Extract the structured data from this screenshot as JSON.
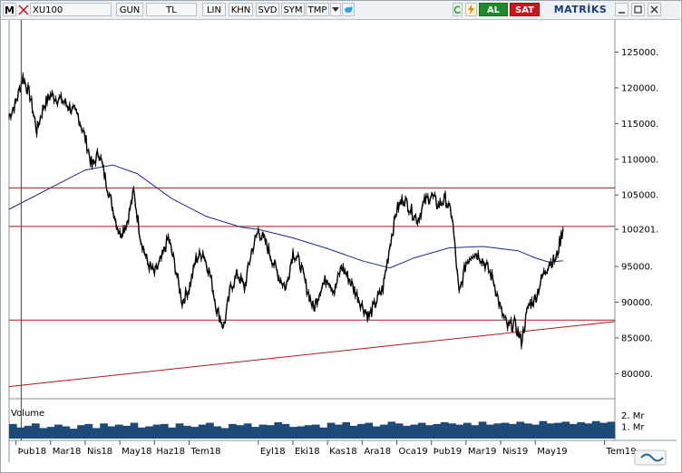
{
  "toolbar": {
    "logo": "M",
    "symbol": "XU100",
    "buttons": [
      "GUN",
      "TL",
      "LIN",
      "KHN",
      "SVD",
      "SYM",
      "TMP"
    ],
    "al": "AL",
    "sat": "SAT",
    "brand": "MATRİKS",
    "colors": {
      "al": "#1f8a2a",
      "sat": "#c8181e",
      "brand": "#1a3a78"
    }
  },
  "chart_data": {
    "type": "line",
    "style": "bar-ohlc",
    "y_ticks": [
      "125000.",
      "120000.",
      "115000.",
      "110000.",
      "105000.",
      "100201.",
      "95000.",
      "90000.",
      "85000.",
      "80000."
    ],
    "ylim": [
      76500,
      129500
    ],
    "x_ticks": [
      "Þub18",
      "Mar18",
      "Nis18",
      "May18",
      "Haz18",
      "Tem18",
      "Eyl18",
      "Eki18",
      "Kas18",
      "Ara18",
      "Oca19",
      "Þub19",
      "Mar19",
      "Nis19",
      "May19",
      "Tem19"
    ],
    "x_tick_month_index": [
      0,
      1,
      2,
      3,
      4,
      5,
      7,
      8,
      9,
      10,
      11,
      12,
      13,
      14,
      15,
      17
    ],
    "x_range_months": [
      -0.2,
      17.3
    ],
    "price_series": {
      "color": "#000000",
      "points": [
        [
          -0.2,
          116000
        ],
        [
          0.0,
          118000
        ],
        [
          0.2,
          121500
        ],
        [
          0.4,
          119000
        ],
        [
          0.6,
          114000
        ],
        [
          0.8,
          117500
        ],
        [
          1.0,
          119000
        ],
        [
          1.2,
          118500
        ],
        [
          1.4,
          118000
        ],
        [
          1.6,
          117000
        ],
        [
          1.8,
          116000
        ],
        [
          2.0,
          113000
        ],
        [
          2.2,
          109000
        ],
        [
          2.4,
          111000
        ],
        [
          2.6,
          107000
        ],
        [
          2.8,
          103000
        ],
        [
          3.0,
          99500
        ],
        [
          3.2,
          101000
        ],
        [
          3.4,
          105500
        ],
        [
          3.6,
          99000
        ],
        [
          3.8,
          95500
        ],
        [
          4.0,
          94000
        ],
        [
          4.2,
          96000
        ],
        [
          4.4,
          99000
        ],
        [
          4.6,
          95000
        ],
        [
          4.8,
          90000
        ],
        [
          5.0,
          92000
        ],
        [
          5.2,
          96000
        ],
        [
          5.4,
          97000
        ],
        [
          5.6,
          94000
        ],
        [
          5.8,
          89000
        ],
        [
          6.0,
          86500
        ],
        [
          6.2,
          92000
        ],
        [
          6.4,
          94000
        ],
        [
          6.6,
          92000
        ],
        [
          6.8,
          97000
        ],
        [
          7.0,
          100000
        ],
        [
          7.2,
          98500
        ],
        [
          7.4,
          96000
        ],
        [
          7.6,
          93500
        ],
        [
          7.8,
          92000
        ],
        [
          8.0,
          97000
        ],
        [
          8.2,
          95500
        ],
        [
          8.4,
          92000
        ],
        [
          8.6,
          89000
        ],
        [
          8.8,
          92000
        ],
        [
          9.0,
          93500
        ],
        [
          9.2,
          91500
        ],
        [
          9.4,
          95000
        ],
        [
          9.6,
          93500
        ],
        [
          9.8,
          91500
        ],
        [
          10.0,
          89500
        ],
        [
          10.2,
          88000
        ],
        [
          10.4,
          90000
        ],
        [
          10.6,
          92000
        ],
        [
          10.8,
          98000
        ],
        [
          11.0,
          103000
        ],
        [
          11.2,
          104500
        ],
        [
          11.4,
          103000
        ],
        [
          11.6,
          101500
        ],
        [
          11.8,
          104000
        ],
        [
          12.0,
          105000
        ],
        [
          12.2,
          103500
        ],
        [
          12.4,
          104500
        ],
        [
          12.6,
          102000
        ],
        [
          12.8,
          91000
        ],
        [
          13.0,
          95500
        ],
        [
          13.2,
          97000
        ],
        [
          13.4,
          96500
        ],
        [
          13.6,
          95000
        ],
        [
          13.8,
          93000
        ],
        [
          14.0,
          89000
        ],
        [
          14.2,
          86500
        ],
        [
          14.4,
          87000
        ],
        [
          14.6,
          84500
        ],
        [
          14.8,
          89500
        ],
        [
          15.0,
          90500
        ],
        [
          15.2,
          93500
        ],
        [
          15.4,
          95500
        ],
        [
          15.6,
          96000
        ],
        [
          15.8,
          100200
        ]
      ]
    },
    "moving_average": {
      "color": "#1c2a8a",
      "points": [
        [
          -0.2,
          103000
        ],
        [
          1.0,
          106000
        ],
        [
          2.0,
          108500
        ],
        [
          2.8,
          109200
        ],
        [
          3.5,
          108000
        ],
        [
          4.5,
          104500
        ],
        [
          5.5,
          102000
        ],
        [
          6.5,
          100500
        ],
        [
          7.0,
          100201
        ],
        [
          8.0,
          99000
        ],
        [
          9.0,
          97500
        ],
        [
          10.0,
          95800
        ],
        [
          10.8,
          94800
        ],
        [
          11.5,
          96200
        ],
        [
          12.5,
          97600
        ],
        [
          13.5,
          97800
        ],
        [
          14.5,
          97200
        ],
        [
          15.0,
          96200
        ],
        [
          15.4,
          95600
        ],
        [
          15.8,
          95800
        ]
      ]
    },
    "horizontal_lines": [
      {
        "value": 106000,
        "color": "#b01818"
      },
      {
        "value": 100600,
        "color": "#b01818"
      },
      {
        "value": 87500,
        "color": "#b01818"
      }
    ],
    "trend_line": {
      "from": [
        -0.2,
        78200
      ],
      "to": [
        17.3,
        87300
      ],
      "color": "#b01818"
    },
    "cursor_line_month": 0.15,
    "volume": {
      "label": "Volume",
      "color": "#1e4a7a",
      "ticks": [
        "2. Mr",
        "1. Mr"
      ],
      "ylim": [
        0,
        2.8
      ],
      "values": [
        1.25,
        0.95,
        1.1,
        1.3,
        0.9,
        1.0,
        1.2,
        1.05,
        0.85,
        1.15,
        1.25,
        0.9,
        1.3,
        1.05,
        1.2,
        1.1,
        1.35,
        0.95,
        1.05,
        1.2,
        1.25,
        0.95,
        1.3,
        1.1,
        1.0,
        1.2,
        1.35,
        1.05,
        0.9,
        1.25,
        1.15,
        1.3,
        1.0,
        1.2,
        1.15,
        1.4,
        1.25,
        1.0,
        1.05,
        1.15,
        1.2,
        0.95,
        1.35,
        1.2,
        1.4,
        1.1,
        1.25,
        1.35,
        1.05,
        1.2,
        1.45,
        1.3,
        1.1,
        1.2,
        1.35,
        1.15,
        1.25,
        1.4,
        1.3,
        1.2,
        1.35,
        1.15,
        1.45,
        1.2,
        1.3,
        1.35,
        1.25,
        1.45,
        1.3,
        1.2,
        1.5,
        1.3,
        1.35,
        1.45,
        1.25,
        1.4,
        1.3,
        1.5,
        1.35,
        1.45
      ]
    }
  }
}
